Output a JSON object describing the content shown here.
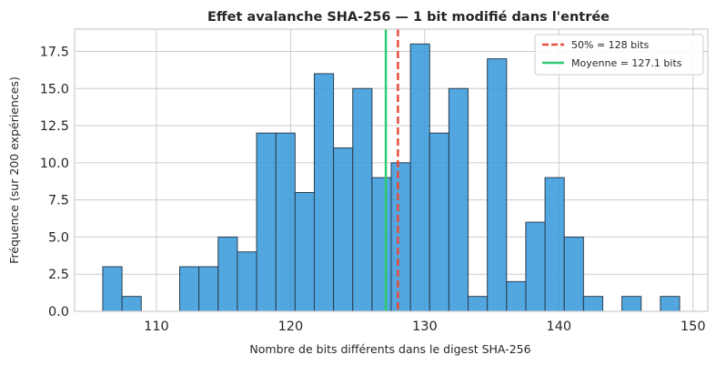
{
  "chart_data": {
    "type": "bar",
    "title": "Effet avalanche SHA-256 — 1 bit modifié dans l'entrée",
    "xlabel": "Nombre de bits différents dans le digest SHA-256",
    "ylabel": "Fréquence (sur 200 expériences)",
    "xlim": [
      103.9,
      151.1
    ],
    "ylim": [
      0,
      19
    ],
    "xticks": [
      110,
      120,
      130,
      140,
      150
    ],
    "yticks": [
      0.0,
      2.5,
      5.0,
      7.5,
      10.0,
      12.5,
      15.0,
      17.5
    ],
    "ytick_labels": [
      "0.0",
      "2.5",
      "5.0",
      "7.5",
      "10.0",
      "12.5",
      "15.0",
      "17.5"
    ],
    "bins": {
      "start": 106,
      "width": 1.4333,
      "counts": [
        3,
        1,
        0,
        0,
        3,
        3,
        5,
        4,
        12,
        12,
        8,
        16,
        11,
        15,
        9,
        10,
        18,
        12,
        15,
        1,
        17,
        2,
        6,
        9,
        5,
        1,
        0,
        1,
        0,
        1
      ]
    },
    "reference_lines": [
      {
        "label": "50% = 128 bits",
        "x": 128,
        "style": "dashed",
        "color": "#e74c3c"
      },
      {
        "label": "Moyenne = 127.1 bits",
        "x": 127.1,
        "style": "solid",
        "color": "#2ecc71"
      }
    ],
    "bar_color": "#3498db",
    "edge_color": "#2c3e50",
    "legend_position": "top-right",
    "grid": true
  }
}
